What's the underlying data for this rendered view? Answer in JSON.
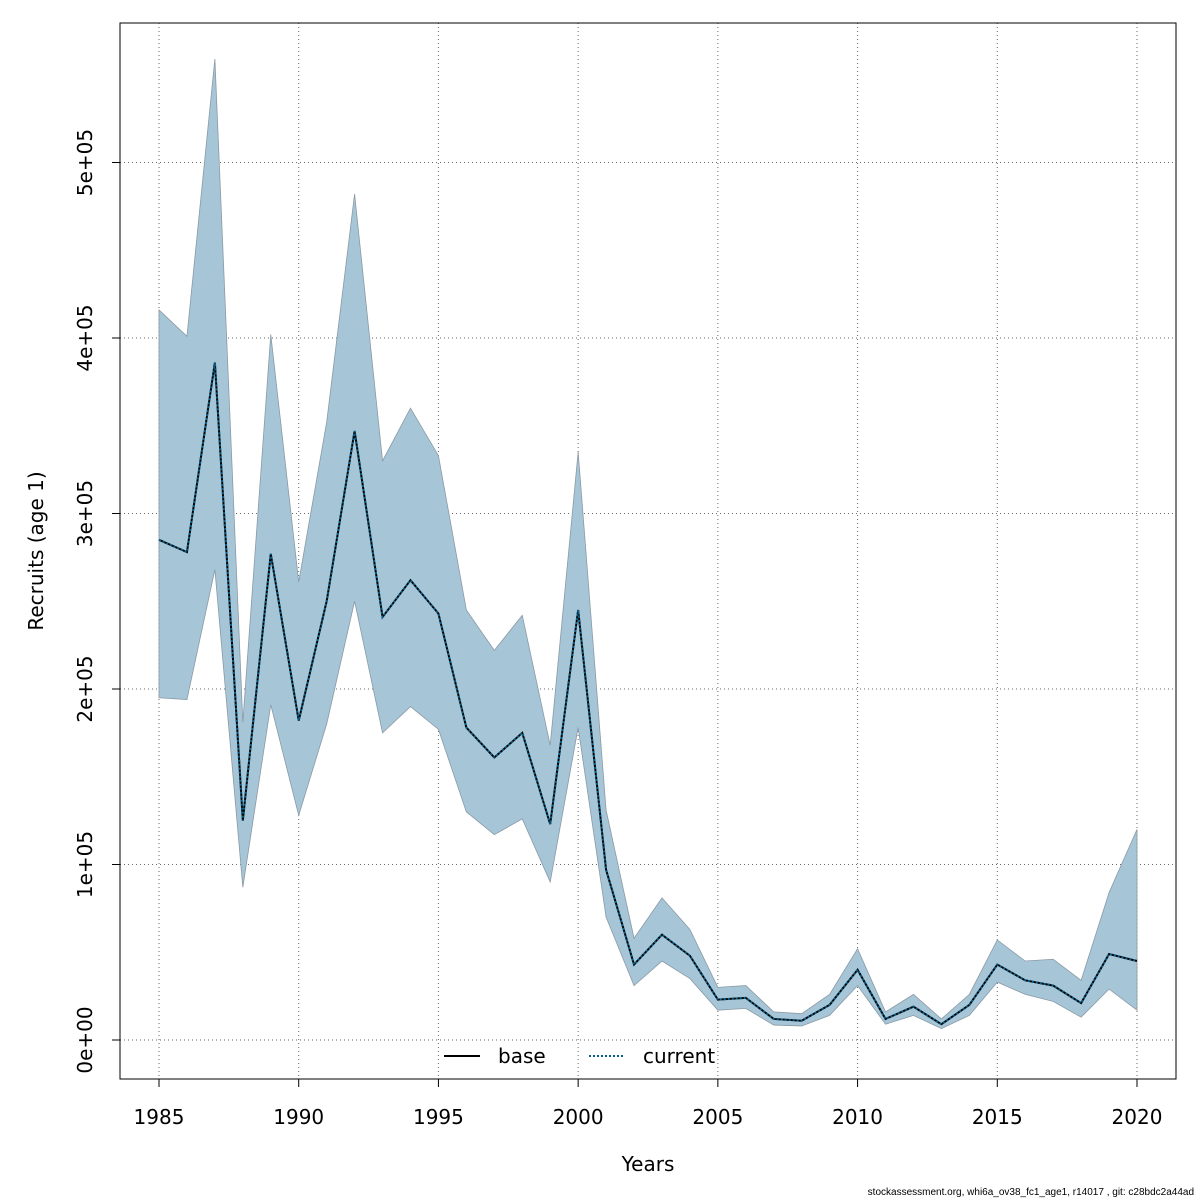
{
  "chart_data": {
    "type": "line",
    "title": "",
    "xlabel": "Years",
    "ylabel": "Recruits (age 1)",
    "xlim": [
      1985,
      2020
    ],
    "ylim": [
      0,
      560000
    ],
    "x_ticks": [
      1985,
      1990,
      1995,
      2000,
      2005,
      2010,
      2015,
      2020
    ],
    "x_tick_labels": [
      "1985",
      "1990",
      "1995",
      "2000",
      "2005",
      "2010",
      "2015",
      "2020"
    ],
    "y_ticks": [
      0,
      100000,
      200000,
      300000,
      400000,
      500000
    ],
    "y_tick_labels": [
      "0e+00",
      "1e+05",
      "2e+05",
      "3e+05",
      "4e+05",
      "5e+05"
    ],
    "grid": true,
    "legend_position": "bottom",
    "band_color": "#a6c5d7",
    "x": [
      1985,
      1986,
      1987,
      1988,
      1989,
      1990,
      1991,
      1992,
      1993,
      1994,
      1995,
      1996,
      1997,
      1998,
      1999,
      2000,
      2001,
      2002,
      2003,
      2004,
      2005,
      2006,
      2007,
      2008,
      2009,
      2010,
      2011,
      2012,
      2013,
      2014,
      2015,
      2016,
      2017,
      2018,
      2019,
      2020
    ],
    "series": [
      {
        "name": "base",
        "color": "#000000",
        "style": "solid",
        "values": [
          285000,
          278000,
          386000,
          125000,
          277000,
          182000,
          250000,
          347000,
          241000,
          262000,
          243000,
          178000,
          161000,
          175000,
          123000,
          245000,
          97000,
          43000,
          60000,
          48000,
          23000,
          24000,
          12000,
          11000,
          20000,
          40000,
          12000,
          19000,
          9000,
          20000,
          43000,
          34000,
          31000,
          21000,
          49000,
          45000
        ]
      },
      {
        "name": "current",
        "color": "#0a5f8a",
        "style": "dotted",
        "values": [
          285000,
          278000,
          386000,
          125000,
          277000,
          182000,
          250000,
          347000,
          241000,
          262000,
          243000,
          178000,
          161000,
          175000,
          123000,
          245000,
          97000,
          43000,
          60000,
          48000,
          23000,
          24000,
          12000,
          11000,
          20000,
          40000,
          12000,
          19000,
          9000,
          20000,
          43000,
          34000,
          31000,
          21000,
          49000,
          45000
        ]
      }
    ],
    "band": {
      "lower": [
        195000,
        194000,
        268000,
        87000,
        191000,
        128000,
        180000,
        250000,
        175000,
        190000,
        177000,
        130000,
        117000,
        126000,
        90000,
        178000,
        70000,
        31000,
        45000,
        35000,
        17000,
        18000,
        8500,
        8000,
        14000,
        31000,
        9000,
        14000,
        6500,
        14000,
        33000,
        26000,
        22000,
        13000,
        29000,
        17000
      ],
      "upper": [
        416000,
        401000,
        559000,
        181000,
        402000,
        261000,
        352000,
        482000,
        330000,
        360000,
        333000,
        245000,
        222000,
        242000,
        168000,
        335000,
        131000,
        58000,
        81000,
        63000,
        30000,
        31000,
        16000,
        15000,
        26000,
        52000,
        16000,
        26000,
        12000,
        26000,
        57000,
        45000,
        46000,
        34000,
        84000,
        120000
      ]
    }
  },
  "footer": "stockassessment.org, whi6a_ov38_fc1_age1, r14017 , git: c28bdc2a44ad"
}
